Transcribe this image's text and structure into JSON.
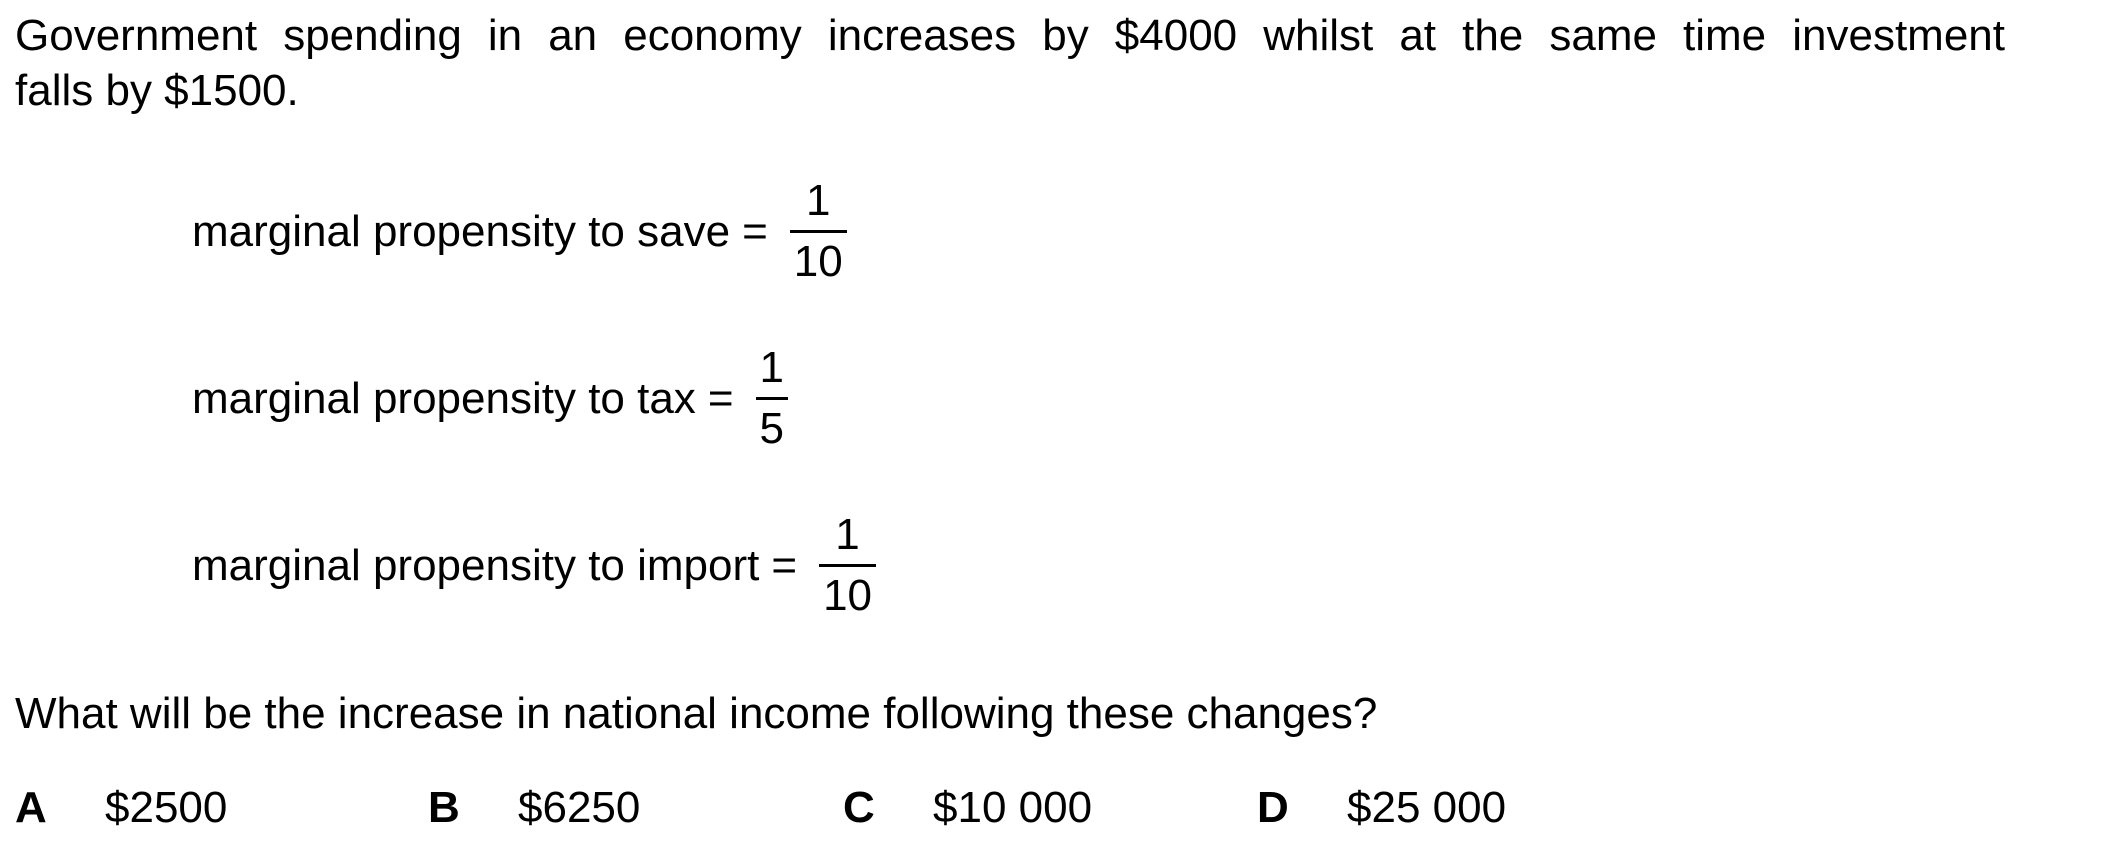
{
  "stem": {
    "line1": "Government spending in an economy increases by $4000 whilst at the same time investment",
    "line2": "falls by $1500."
  },
  "equations": [
    {
      "label": "marginal propensity to save",
      "equals": "=",
      "numerator": "1",
      "denominator": "10"
    },
    {
      "label": "marginal propensity to tax",
      "equals": "=",
      "numerator": "1",
      "denominator": "5"
    },
    {
      "label": "marginal propensity to import",
      "equals": "=",
      "numerator": "1",
      "denominator": "10"
    }
  ],
  "question": "What will be the increase in national income following these changes?",
  "options": [
    {
      "letter": "A",
      "value": "$2500"
    },
    {
      "letter": "B",
      "value": "$6250"
    },
    {
      "letter": "C",
      "value": "$10 000"
    },
    {
      "letter": "D",
      "value": "$25 000"
    }
  ]
}
